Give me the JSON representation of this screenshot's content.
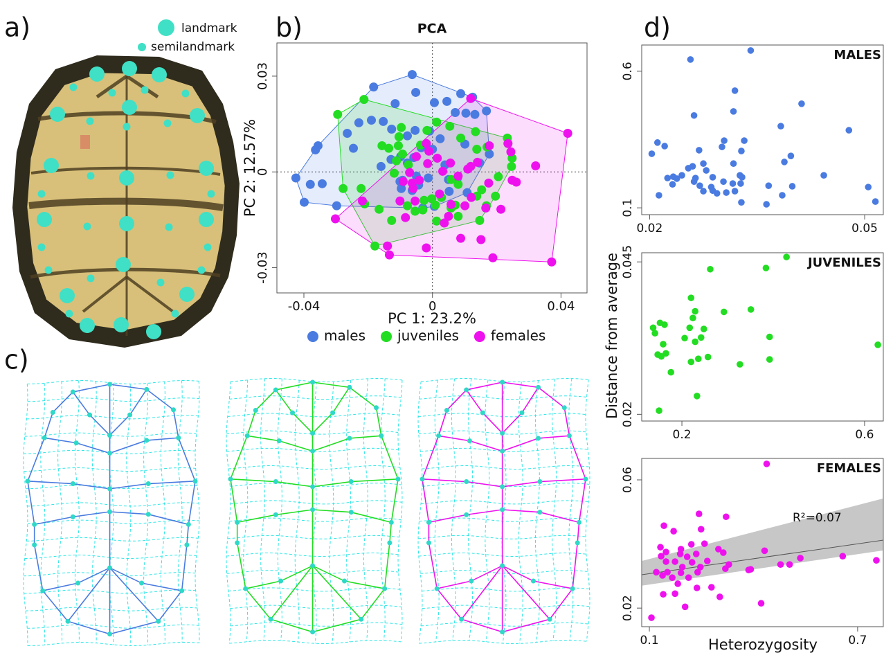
{
  "panel_labels": [
    "a)",
    "b)",
    "c)",
    "d)"
  ],
  "landmark_legend": [
    "landmark",
    "semilandmark"
  ],
  "panel_d": {
    "y_label": "Distance from average",
    "x_label": "Heterozygosity"
  },
  "chart_data": [
    {
      "type": "scatter",
      "title": "PCA",
      "x_label": "PC 1: 23.2%",
      "y_label": "PC 2: 12.57%",
      "xlim": [
        -0.0484,
        0.0481
      ],
      "ylim": [
        -0.0379,
        0.0404
      ],
      "xticks": [
        -0.04,
        0,
        0.04
      ],
      "yticks": [
        -0.03,
        0,
        0.03
      ],
      "zero_lines": true,
      "hulls": true,
      "legend": "bottom",
      "series": [
        {
          "name": "males",
          "color": "#4a7be0",
          "x": [
            -0.0063,
            -0.0183,
            0.0088,
            0.0125,
            0.0006,
            0.0045,
            -0.0052,
            -0.0116,
            0.0071,
            0.0132,
            0.0168,
            0.0104,
            -0.019,
            -0.0153,
            -0.0229,
            -0.0265,
            -0.0356,
            -0.0364,
            -0.0127,
            -0.0078,
            -0.0054,
            -0.0009,
            0.0024,
            -0.0246,
            -0.016,
            -0.0129,
            -0.0099,
            -0.0078,
            -0.0058,
            -0.0035,
            0,
            0.0039,
            0.0101,
            0.0147,
            0.0177,
            -0.0425,
            -0.038,
            -0.0343,
            -0.0101,
            -0.0093,
            -0.005,
            -0.0013,
            0.005,
            0.0078,
            -0.0043,
            0.0052,
            0.0108,
            -0.0399,
            -0.0298,
            -0.003,
            0.0006,
            -0.0097,
            -0.0063
          ],
          "y": [
            0.0305,
            0.0266,
            0.0245,
            0.0234,
            0.0217,
            0.0221,
            0.0249,
            0.0214,
            0.0186,
            0.018,
            0.0191,
            0.0184,
            0.0162,
            0.0158,
            0.0154,
            0.0121,
            0.0082,
            0.0069,
            0.0134,
            0.0113,
            0.013,
            0.0128,
            0.0104,
            0.0074,
            0.0017,
            0.0039,
            0.0048,
            0.0028,
            0.0045,
            0.0076,
            0.0071,
            0.0022,
            0.0087,
            0.0028,
            0.0056,
            -0.0019,
            -0.0039,
            -0.0037,
            -0.003,
            -0.0026,
            -0.0013,
            -0.0019,
            -0.0024,
            -0.0019,
            -0.0041,
            -0.0061,
            -0.0065,
            -0.0095,
            -0.0106,
            -0.0113,
            -0.0108,
            -0.0052,
            -0.0058
          ]
        },
        {
          "name": "juveniles",
          "color": "#22dd22",
          "x": [
            -0.0295,
            -0.0213,
            -0.0097,
            -0.0104,
            -0.0106,
            -0.0093,
            -0.0157,
            -0.0112,
            -0.0075,
            -0.0037,
            -0.0017,
            0.0013,
            0.0054,
            0.0088,
            0.0134,
            0.0138,
            0.017,
            0.0233,
            0.0235,
            0.0248,
            0.0246,
            0.0205,
            0.0196,
            0.0168,
            0.0138,
            0.0153,
            0.008,
            0.0058,
            0.0028,
            0.0009,
            -0.0002,
            -0.0026,
            -0.003,
            0.0013,
            0.0058,
            0.0147,
            0.0071,
            -0.0054,
            -0.0078,
            -0.0179,
            -0.0222,
            -0.0278,
            -0.0211,
            -0.0166,
            -0.0127,
            -0.0119,
            -0.0136,
            0.008
          ],
          "y": [
            0.018,
            0.0227,
            0.0139,
            0.011,
            0.0082,
            0.0056,
            0.0082,
            0.0035,
            0.0022,
            0.0084,
            0.013,
            0.0156,
            0.0143,
            0.0106,
            0.0126,
            0.0071,
            0.0078,
            0.0106,
            0.0089,
            0.0043,
            0.0017,
            -0.0015,
            -0.0076,
            -0.0106,
            -0.0076,
            -0.0056,
            -0.0039,
            -0.0024,
            -0.008,
            -0.0104,
            -0.0084,
            -0.0089,
            -0.0119,
            -0.0154,
            -0.0113,
            -0.0152,
            -0.0104,
            -0.0123,
            -0.0106,
            -0.0232,
            -0.0052,
            -0.0052,
            -0.01,
            -0.0117,
            -0.0152,
            -0.0004,
            0.0074,
            -0.0139
          ]
        },
        {
          "name": "females",
          "color": "#ee11ee",
          "x": [
            0.0421,
            0.0119,
            0.0244,
            0.0321,
            0.0261,
            0.0248,
            0.0235,
            0.0177,
            0.011,
            0.014,
            0.0119,
            0.008,
            0.0056,
            0.0015,
            -0.0011,
            -0.0019,
            -0.0015,
            0.0032,
            -0.005,
            -0.0041,
            -0.0071,
            -0.0063,
            -0.0101,
            -0.006,
            0.0022,
            0.0058,
            0.0101,
            0.0121,
            0.0175,
            0.0166,
            0.0213,
            0.005,
            0.0037,
            0.0088,
            0.0151,
            0.0188,
            0.0371,
            -0.014,
            -0.0134,
            -0.0019,
            -0.0302,
            -0.0218,
            -0.0084,
            -0.0054,
            -0.0091
          ],
          "y": [
            0.0121,
            0.023,
            0.0063,
            0.0019,
            -0.0032,
            -0.0026,
            0.0089,
            0.0082,
            0.0009,
            0.003,
            0.0017,
            -0.0013,
            0.0028,
            0.0043,
            0.0065,
            0.0089,
            0.0026,
            0.0002,
            0.0048,
            -0.0026,
            -0.0002,
            -0.0035,
            -0.0091,
            -0.0052,
            -0.0069,
            -0.0102,
            -0.0106,
            -0.008,
            -0.0035,
            -0.0113,
            -0.0117,
            -0.0139,
            -0.016,
            -0.0208,
            -0.0212,
            -0.0269,
            -0.0282,
            -0.0232,
            -0.026,
            -0.0238,
            -0.0147,
            -0.0091,
            -0.0143,
            -0.0091,
            -0.003
          ]
        }
      ]
    },
    {
      "type": "scatter",
      "title": "MALES",
      "xlim": [
        0.0189,
        0.0526
      ],
      "ylim": [
        0.075,
        0.696
      ],
      "xticks": [
        0.02,
        0.05
      ],
      "yticks": [
        0.1,
        0.6
      ],
      "series": [
        {
          "color": "#4a7be0",
          "x": [
            0.0341,
            0.0257,
            0.0319,
            0.0412,
            0.0262,
            0.0317,
            0.0383,
            0.0478,
            0.0304,
            0.0332,
            0.0301,
            0.0211,
            0.0221,
            0.0203,
            0.0269,
            0.0328,
            0.0397,
            0.0388,
            0.0275,
            0.026,
            0.0254,
            0.0279,
            0.0245,
            0.0317,
            0.0233,
            0.0225,
            0.0238,
            0.0264,
            0.0288,
            0.0326,
            0.0329,
            0.0443,
            0.0303,
            0.0262,
            0.027,
            0.0232,
            0.0286,
            0.0316,
            0.0327,
            0.0366,
            0.0399,
            0.0505,
            0.0288,
            0.0275,
            0.0319,
            0.0307,
            0.0294,
            0.0213,
            0.0385,
            0.0328,
            0.0363,
            0.0515
          ],
          "y": [
            0.676,
            0.643,
            0.529,
            0.481,
            0.438,
            0.453,
            0.399,
            0.384,
            0.346,
            0.346,
            0.323,
            0.339,
            0.326,
            0.298,
            0.311,
            0.308,
            0.29,
            0.268,
            0.262,
            0.252,
            0.245,
            0.237,
            0.219,
            0.262,
            0.214,
            0.209,
            0.207,
            0.209,
            0.212,
            0.219,
            0.212,
            0.219,
            0.196,
            0.196,
            0.181,
            0.186,
            0.176,
            0.189,
            0.189,
            0.181,
            0.179,
            0.176,
            0.163,
            0.161,
            0.161,
            0.156,
            0.153,
            0.146,
            0.146,
            0.12,
            0.113,
            0.123
          ]
        }
      ]
    },
    {
      "type": "scatter",
      "title": "JUVENILES",
      "xlim": [
        0.112,
        0.641
      ],
      "ylim": [
        0.0189,
        0.0465
      ],
      "xticks": [
        0.2,
        0.6
      ],
      "yticks": [
        0.02,
        0.045
      ],
      "series": [
        {
          "color": "#22dd22",
          "x": [
            0.429,
            0.384,
            0.262,
            0.22,
            0.351,
            0.292,
            0.229,
            0.224,
            0.137,
            0.152,
            0.162,
            0.141,
            0.217,
            0.248,
            0.206,
            0.242,
            0.229,
            0.392,
            0.629,
            0.159,
            0.165,
            0.147,
            0.155,
            0.257,
            0.236,
            0.22,
            0.392,
            0.327,
            0.176,
            0.233,
            0.15
          ],
          "y": [
            0.0458,
            0.044,
            0.0438,
            0.0391,
            0.0372,
            0.0368,
            0.0369,
            0.0358,
            0.0342,
            0.035,
            0.0347,
            0.0333,
            0.0342,
            0.034,
            0.0325,
            0.0326,
            0.0319,
            0.0327,
            0.0314,
            0.0315,
            0.03,
            0.0298,
            0.0295,
            0.0294,
            0.0291,
            0.0286,
            0.029,
            0.0282,
            0.0269,
            0.023,
            0.0206
          ]
        }
      ]
    },
    {
      "type": "scatter",
      "title": "FEMALES",
      "xlim": [
        0.078,
        0.774
      ],
      "ylim": [
        0.0142,
        0.0667
      ],
      "xticks": [
        0.1,
        0.7
      ],
      "yticks": [
        0.02,
        0.06
      ],
      "annotation": "R²=0.07",
      "fit": {
        "x": [
          0.078,
          0.774
        ],
        "y": [
          0.0304,
          0.0412
        ],
        "lower": [
          0.027,
          0.038
        ],
        "upper": [
          0.0347,
          0.0542
        ]
      },
      "series": [
        {
          "color": "#ee11ee",
          "x": [
            0.438,
            0.243,
            0.321,
            0.142,
            0.17,
            0.249,
            0.299,
            0.313,
            0.259,
            0.432,
            0.221,
            0.191,
            0.132,
            0.148,
            0.189,
            0.209,
            0.235,
            0.267,
            0.329,
            0.392,
            0.386,
            0.478,
            0.504,
            0.535,
            0.657,
            0.754,
            0.134,
            0.148,
            0.174,
            0.195,
            0.223,
            0.247,
            0.152,
            0.138,
            0.166,
            0.191,
            0.12,
            0.213,
            0.239,
            0.182,
            0.237,
            0.279,
            0.14,
            0.174,
            0.203,
            0.422,
            0.106,
            0.303,
            0.319
          ],
          "y": [
            0.065,
            0.0494,
            0.0485,
            0.0457,
            0.044,
            0.0446,
            0.0384,
            0.0373,
            0.0401,
            0.0379,
            0.0399,
            0.0384,
            0.039,
            0.0375,
            0.0369,
            0.036,
            0.0369,
            0.0347,
            0.0336,
            0.0321,
            0.0319,
            0.0336,
            0.0336,
            0.0356,
            0.0362,
            0.0349,
            0.0362,
            0.0345,
            0.0345,
            0.0328,
            0.0343,
            0.0328,
            0.0312,
            0.0302,
            0.0295,
            0.031,
            0.0312,
            0.0295,
            0.0312,
            0.0276,
            0.0263,
            0.0265,
            0.0243,
            0.0245,
            0.0204,
            0.0215,
            0.017,
            0.0235,
            0.0323
          ]
        }
      ]
    }
  ]
}
